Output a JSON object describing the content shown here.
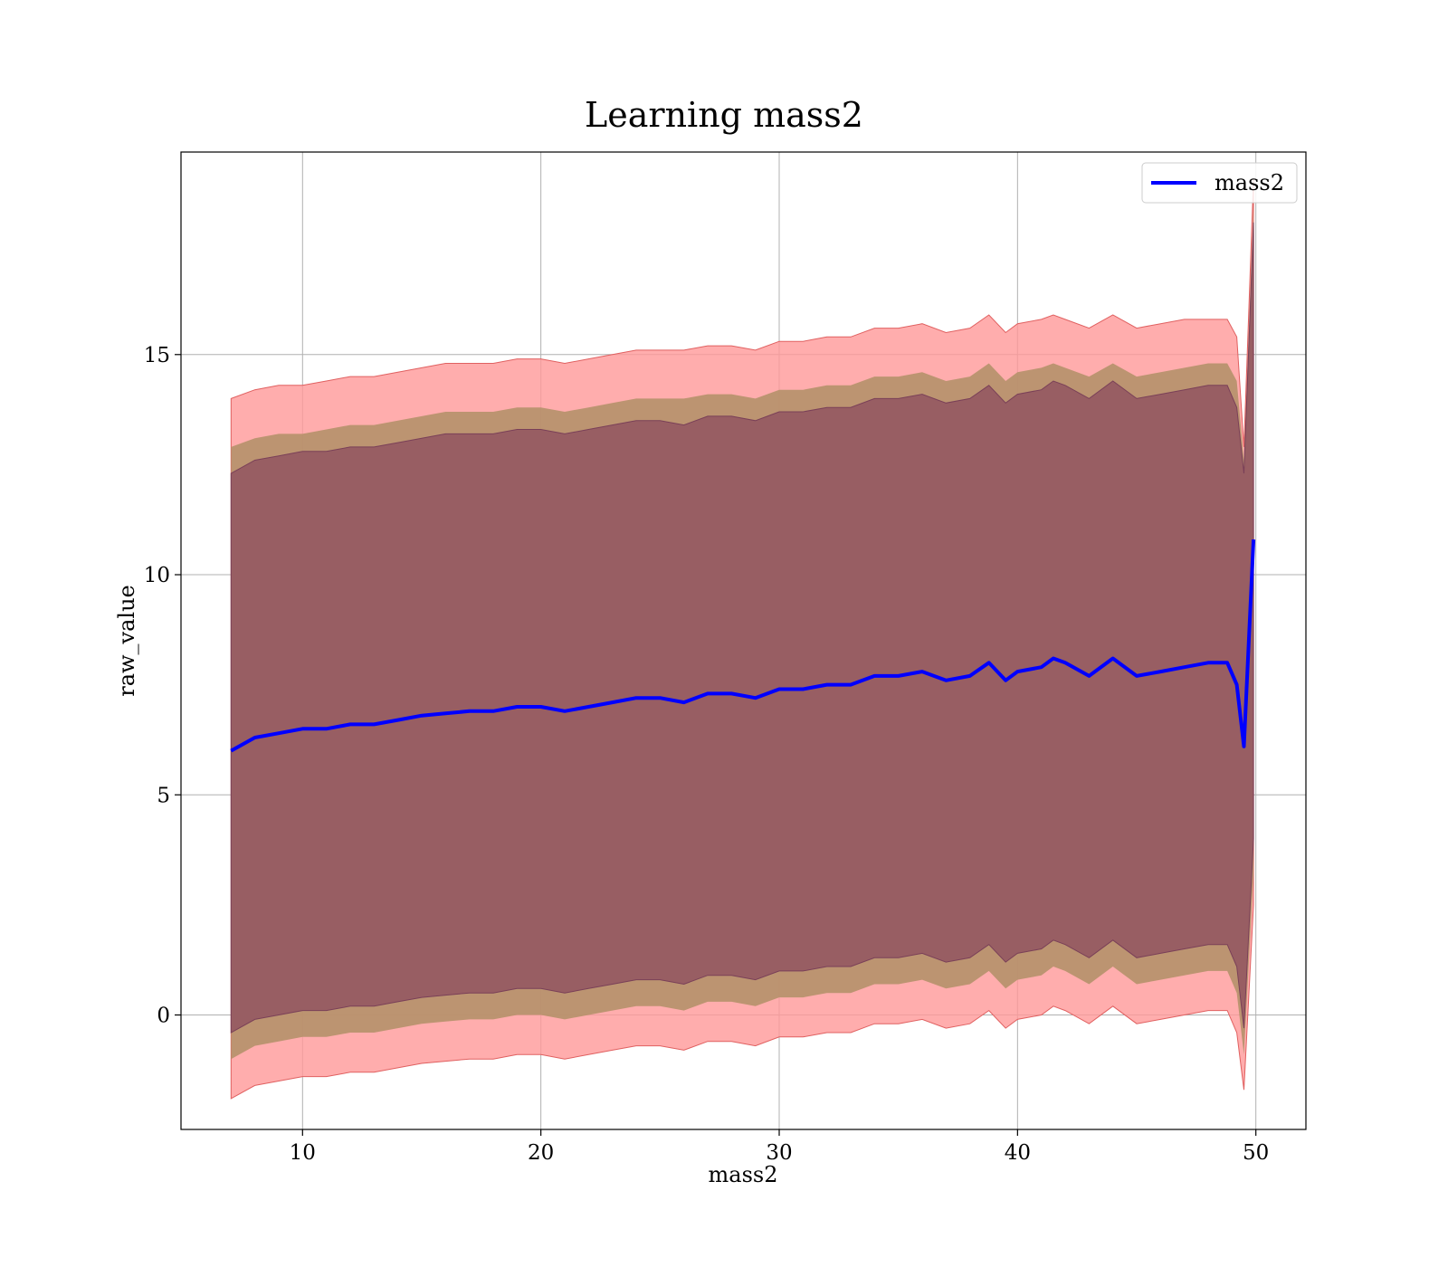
{
  "chart_data": {
    "type": "line",
    "title": "Learning mass2",
    "xlabel": "mass2",
    "ylabel": "raw_value",
    "xlim": [
      4.9,
      52.1
    ],
    "ylim": [
      -2.6,
      19.6
    ],
    "xticks": [
      10,
      20,
      30,
      40,
      50
    ],
    "yticks": [
      0,
      5,
      10,
      15
    ],
    "grid": true,
    "legend": {
      "position": "top-right",
      "entries": [
        "mass2"
      ]
    },
    "colors": {
      "mean_line": "#0000ff",
      "outer_band": "#ff9999",
      "middle_band": "#b5916a",
      "inner_band": "#8b4a5e",
      "band_edge": "#e06060",
      "grid": "#b0b0b0"
    },
    "series": [
      {
        "name": "mass2",
        "x": [
          7.0,
          8.0,
          9.0,
          10.0,
          11.0,
          12.0,
          13.0,
          14.0,
          15.0,
          16.0,
          17.0,
          18.0,
          19.0,
          20.0,
          21.0,
          22.0,
          23.0,
          24.0,
          25.0,
          26.0,
          27.0,
          28.0,
          29.0,
          30.0,
          31.0,
          32.0,
          33.0,
          34.0,
          35.0,
          36.0,
          37.0,
          38.0,
          38.8,
          39.5,
          40.0,
          41.0,
          41.5,
          42.0,
          43.0,
          44.0,
          45.0,
          46.0,
          47.0,
          48.0,
          48.8,
          49.2,
          49.5,
          49.9
        ],
        "y": [
          6.0,
          6.3,
          6.4,
          6.5,
          6.5,
          6.6,
          6.6,
          6.7,
          6.8,
          6.85,
          6.9,
          6.9,
          7.0,
          7.0,
          6.9,
          7.0,
          7.1,
          7.2,
          7.2,
          7.1,
          7.3,
          7.3,
          7.2,
          7.4,
          7.4,
          7.5,
          7.5,
          7.7,
          7.7,
          7.8,
          7.6,
          7.7,
          8.0,
          7.6,
          7.8,
          7.9,
          8.1,
          8.0,
          7.7,
          8.1,
          7.7,
          7.8,
          7.9,
          8.0,
          8.0,
          7.5,
          6.1,
          10.8
        ],
        "outer_upper": [
          14.0,
          14.2,
          14.3,
          14.3,
          14.4,
          14.5,
          14.5,
          14.6,
          14.7,
          14.8,
          14.8,
          14.8,
          14.9,
          14.9,
          14.8,
          14.9,
          15.0,
          15.1,
          15.1,
          15.1,
          15.2,
          15.2,
          15.1,
          15.3,
          15.3,
          15.4,
          15.4,
          15.6,
          15.6,
          15.7,
          15.5,
          15.6,
          15.9,
          15.5,
          15.7,
          15.8,
          15.9,
          15.8,
          15.6,
          15.9,
          15.6,
          15.7,
          15.8,
          15.8,
          15.8,
          15.4,
          12.9,
          19.0
        ],
        "middle_upper": [
          12.9,
          13.1,
          13.2,
          13.2,
          13.3,
          13.4,
          13.4,
          13.5,
          13.6,
          13.7,
          13.7,
          13.7,
          13.8,
          13.8,
          13.7,
          13.8,
          13.9,
          14.0,
          14.0,
          14.0,
          14.1,
          14.1,
          14.0,
          14.2,
          14.2,
          14.3,
          14.3,
          14.5,
          14.5,
          14.6,
          14.4,
          14.5,
          14.8,
          14.4,
          14.6,
          14.7,
          14.8,
          14.7,
          14.5,
          14.8,
          14.5,
          14.6,
          14.7,
          14.8,
          14.8,
          14.4,
          12.6,
          18.4
        ],
        "inner_upper": [
          12.3,
          12.6,
          12.7,
          12.8,
          12.8,
          12.9,
          12.9,
          13.0,
          13.1,
          13.2,
          13.2,
          13.2,
          13.3,
          13.3,
          13.2,
          13.3,
          13.4,
          13.5,
          13.5,
          13.4,
          13.6,
          13.6,
          13.5,
          13.7,
          13.7,
          13.8,
          13.8,
          14.0,
          14.0,
          14.1,
          13.9,
          14.0,
          14.3,
          13.9,
          14.1,
          14.2,
          14.4,
          14.3,
          14.0,
          14.4,
          14.0,
          14.1,
          14.2,
          14.3,
          14.3,
          13.8,
          12.3,
          18.0
        ],
        "inner_lower": [
          -0.4,
          -0.1,
          0.0,
          0.1,
          0.1,
          0.2,
          0.2,
          0.3,
          0.4,
          0.45,
          0.5,
          0.5,
          0.6,
          0.6,
          0.5,
          0.6,
          0.7,
          0.8,
          0.8,
          0.7,
          0.9,
          0.9,
          0.8,
          1.0,
          1.0,
          1.1,
          1.1,
          1.3,
          1.3,
          1.4,
          1.2,
          1.3,
          1.6,
          1.2,
          1.4,
          1.5,
          1.7,
          1.6,
          1.3,
          1.7,
          1.3,
          1.4,
          1.5,
          1.6,
          1.6,
          1.1,
          -0.3,
          4.0
        ],
        "middle_lower": [
          -1.0,
          -0.7,
          -0.6,
          -0.5,
          -0.5,
          -0.4,
          -0.4,
          -0.3,
          -0.2,
          -0.15,
          -0.1,
          -0.1,
          0.0,
          0.0,
          -0.1,
          0.0,
          0.1,
          0.2,
          0.2,
          0.1,
          0.3,
          0.3,
          0.2,
          0.4,
          0.4,
          0.5,
          0.5,
          0.7,
          0.7,
          0.8,
          0.6,
          0.7,
          1.0,
          0.6,
          0.8,
          0.9,
          1.1,
          1.0,
          0.7,
          1.1,
          0.7,
          0.8,
          0.9,
          1.0,
          1.0,
          0.5,
          -0.9,
          3.2
        ],
        "outer_lower": [
          -1.9,
          -1.6,
          -1.5,
          -1.4,
          -1.4,
          -1.3,
          -1.3,
          -1.2,
          -1.1,
          -1.05,
          -1.0,
          -1.0,
          -0.9,
          -0.9,
          -1.0,
          -0.9,
          -0.8,
          -0.7,
          -0.7,
          -0.8,
          -0.6,
          -0.6,
          -0.7,
          -0.5,
          -0.5,
          -0.4,
          -0.4,
          -0.2,
          -0.2,
          -0.1,
          -0.3,
          -0.2,
          0.1,
          -0.3,
          -0.1,
          0.0,
          0.2,
          0.1,
          -0.2,
          0.2,
          -0.2,
          -0.1,
          0.0,
          0.1,
          0.1,
          -0.4,
          -1.7,
          2.5
        ]
      }
    ]
  }
}
